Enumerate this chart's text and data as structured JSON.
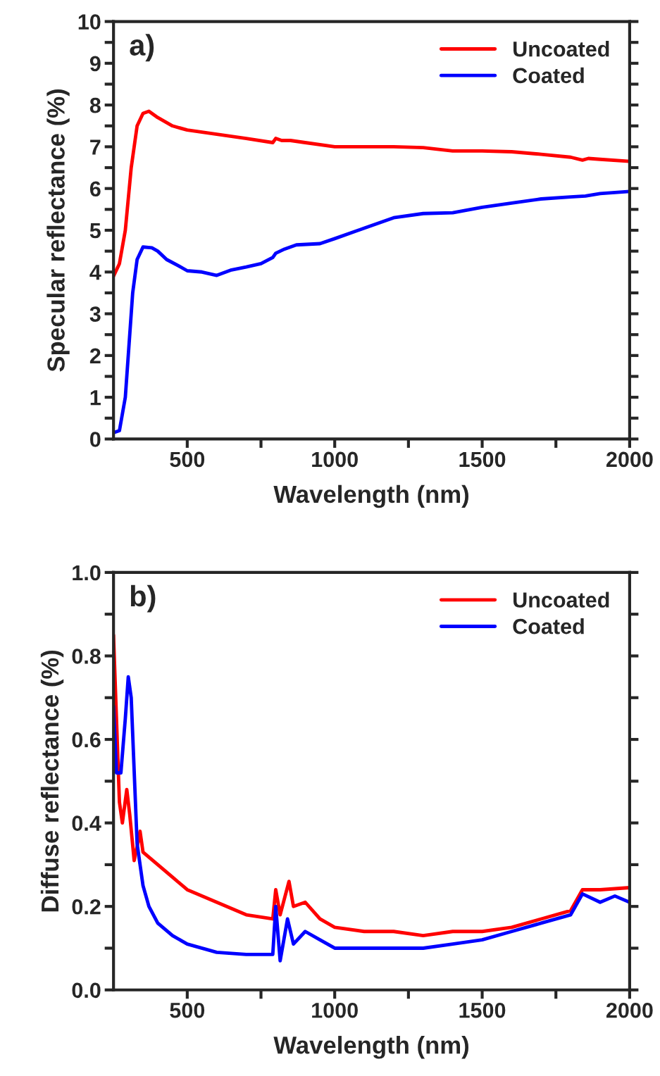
{
  "chart_data": [
    {
      "type": "line",
      "annotations": [
        "a)"
      ],
      "xlabel": "Wavelength (nm)",
      "ylabel": "Specular reflectance (%)",
      "legend": "top right",
      "grid": false,
      "xlim": [
        250,
        2000
      ],
      "xticks": [
        500,
        {
          "value": 750,
          "label": null
        },
        1000,
        {
          "value": 1250,
          "label": null
        },
        1500,
        {
          "value": 1750,
          "label": null
        },
        2000
      ],
      "ylim": [
        0,
        10
      ],
      "yticks": [
        0,
        {
          "value": 0.5,
          "label": null
        },
        1,
        {
          "value": 1.5,
          "label": null
        },
        2,
        {
          "value": 2.5,
          "label": null
        },
        3,
        {
          "value": 3.5,
          "label": null
        },
        4,
        {
          "value": 4.5,
          "label": null
        },
        5,
        {
          "value": 5.5,
          "label": null
        },
        6,
        {
          "value": 6.5,
          "label": null
        },
        7,
        {
          "value": 7.5,
          "label": null
        },
        8,
        {
          "value": 8.5,
          "label": null
        },
        9,
        {
          "value": 9.5,
          "label": null
        },
        10
      ],
      "series": [
        {
          "name": "Uncoated",
          "color": "#ff0000",
          "x": [
            250,
            270,
            290,
            310,
            330,
            350,
            370,
            400,
            450,
            500,
            550,
            600,
            700,
            790,
            800,
            820,
            850,
            900,
            1000,
            1200,
            1300,
            1400,
            1500,
            1600,
            1700,
            1800,
            1840,
            1860,
            1900,
            2000
          ],
          "values": [
            3.9,
            4.2,
            5.0,
            6.5,
            7.5,
            7.8,
            7.85,
            7.7,
            7.5,
            7.4,
            7.35,
            7.3,
            7.2,
            7.1,
            7.2,
            7.15,
            7.15,
            7.1,
            7.0,
            7.0,
            6.98,
            6.9,
            6.9,
            6.88,
            6.82,
            6.75,
            6.68,
            6.72,
            6.7,
            6.65
          ]
        },
        {
          "name": "Coated",
          "color": "#0000ff",
          "x": [
            250,
            270,
            290,
            300,
            315,
            330,
            350,
            380,
            400,
            430,
            470,
            500,
            550,
            600,
            650,
            700,
            750,
            790,
            800,
            830,
            870,
            950,
            1000,
            1100,
            1200,
            1300,
            1400,
            1500,
            1600,
            1700,
            1800,
            1850,
            1900,
            2000
          ],
          "values": [
            0.15,
            0.2,
            1.0,
            2.0,
            3.5,
            4.3,
            4.6,
            4.58,
            4.5,
            4.3,
            4.15,
            4.03,
            4.0,
            3.92,
            4.05,
            4.12,
            4.2,
            4.35,
            4.45,
            4.55,
            4.65,
            4.68,
            4.8,
            5.05,
            5.3,
            5.4,
            5.42,
            5.55,
            5.65,
            5.75,
            5.8,
            5.82,
            5.88,
            5.93
          ]
        }
      ]
    },
    {
      "type": "line",
      "annotations": [
        "b)"
      ],
      "xlabel": "Wavelength (nm)",
      "ylabel": "Diffuse reflectance (%)",
      "legend": "top right",
      "grid": false,
      "xlim": [
        250,
        2000
      ],
      "xticks": [
        500,
        {
          "value": 750,
          "label": null
        },
        1000,
        {
          "value": 1250,
          "label": null
        },
        1500,
        {
          "value": 1750,
          "label": null
        },
        2000
      ],
      "ylim": [
        0,
        1.0
      ],
      "yticks": [
        {
          "value": 0,
          "label": "0.0"
        },
        {
          "value": 0.1,
          "label": null
        },
        0.2,
        {
          "value": 0.3,
          "label": null
        },
        0.4,
        {
          "value": 0.5,
          "label": null
        },
        0.6,
        {
          "value": 0.7,
          "label": null
        },
        0.8,
        {
          "value": 0.9,
          "label": null
        },
        {
          "value": 1.0,
          "label": "1.0"
        }
      ],
      "series": [
        {
          "name": "Uncoated",
          "color": "#ff0000",
          "x": [
            250,
            270,
            280,
            295,
            305,
            320,
            335,
            340,
            350,
            400,
            450,
            500,
            600,
            700,
            790,
            800,
            815,
            845,
            860,
            900,
            950,
            1000,
            1100,
            1200,
            1300,
            1400,
            1500,
            1600,
            1700,
            1800,
            1840,
            1900,
            2000
          ],
          "values": [
            0.85,
            0.45,
            0.4,
            0.48,
            0.42,
            0.31,
            0.36,
            0.38,
            0.33,
            0.3,
            0.27,
            0.24,
            0.21,
            0.18,
            0.17,
            0.24,
            0.18,
            0.26,
            0.2,
            0.21,
            0.17,
            0.15,
            0.14,
            0.14,
            0.13,
            0.14,
            0.14,
            0.15,
            0.17,
            0.19,
            0.24,
            0.24,
            0.245
          ]
        },
        {
          "name": "Coated",
          "color": "#0000ff",
          "x": [
            250,
            260,
            275,
            290,
            300,
            310,
            330,
            350,
            370,
            400,
            450,
            500,
            600,
            700,
            790,
            800,
            815,
            840,
            860,
            900,
            950,
            1000,
            1100,
            1200,
            1300,
            1400,
            1500,
            1600,
            1700,
            1800,
            1840,
            1900,
            1950,
            2000
          ],
          "values": [
            0.68,
            0.52,
            0.52,
            0.65,
            0.75,
            0.7,
            0.35,
            0.25,
            0.2,
            0.16,
            0.13,
            0.11,
            0.09,
            0.085,
            0.085,
            0.2,
            0.07,
            0.17,
            0.11,
            0.14,
            0.12,
            0.1,
            0.1,
            0.1,
            0.1,
            0.11,
            0.12,
            0.14,
            0.16,
            0.18,
            0.23,
            0.21,
            0.225,
            0.21
          ]
        }
      ]
    }
  ]
}
